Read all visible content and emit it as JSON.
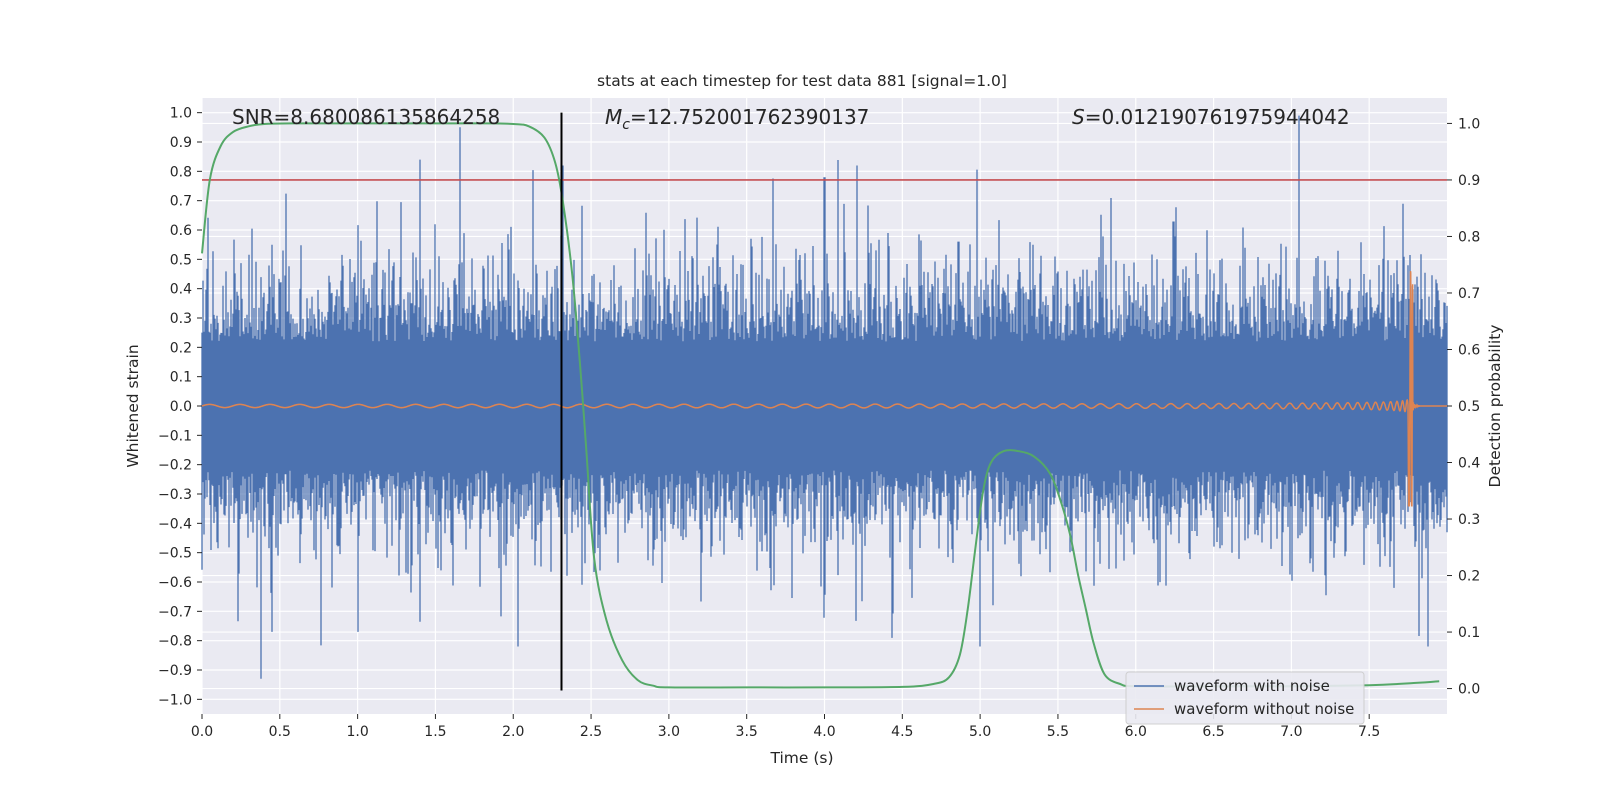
{
  "chart_data": {
    "type": "line",
    "title": "stats at each timestep for test data 881 [signal=1.0]",
    "xlabel": "Time (s)",
    "ylabel_left": "Whitened strain",
    "ylabel_right": "Detection probability",
    "xlim": [
      0.0,
      8.0
    ],
    "ylim_left": [
      -1.05,
      1.05
    ],
    "ylim_right": [
      -0.045,
      1.045
    ],
    "x_ticks": [
      "0.0",
      "0.5",
      "1.0",
      "1.5",
      "2.0",
      "2.5",
      "3.0",
      "3.5",
      "4.0",
      "4.5",
      "5.0",
      "5.5",
      "6.0",
      "6.5",
      "7.0",
      "7.5"
    ],
    "y_ticks_left": [
      "1.0",
      "0.9",
      "0.8",
      "0.7",
      "0.6",
      "0.5",
      "0.4",
      "0.3",
      "0.2",
      "0.1",
      "0.0",
      "−0.1",
      "−0.2",
      "−0.3",
      "−0.4",
      "−0.5",
      "−0.6",
      "−0.7",
      "−0.8",
      "−0.9",
      "−1.0"
    ],
    "y_ticks_right": [
      "1.0",
      "0.9",
      "0.8",
      "0.7",
      "0.6",
      "0.5",
      "0.4",
      "0.3",
      "0.2",
      "0.1",
      "0.0"
    ],
    "grid": true,
    "legend_position": "lower-right",
    "annotations": {
      "snr": "SNR=8.680086135864258",
      "mc_symbol": "M",
      "mc_sub": "c",
      "mc_value": "=12.752001762390137",
      "s_symbol": "S",
      "s_value": "=0.012190761975944042"
    },
    "threshold_right_axis": 0.9,
    "vertical_marker_x": 2.31,
    "series": [
      {
        "name": "waveform with noise",
        "color": "#4c72b0",
        "axis": "left",
        "description_values": "whitened noisy strain, peaks near +/-0.6, max 0.99 at t=7.05, min -0.93 at t=0.38",
        "peaks": [
          {
            "x": 0.38,
            "y": -0.93
          },
          {
            "x": 0.45,
            "y": -0.77
          },
          {
            "x": 1.0,
            "y": -0.77
          },
          {
            "x": 1.4,
            "y": 0.84
          },
          {
            "x": 1.66,
            "y": 0.95
          },
          {
            "x": 2.03,
            "y": -0.82
          },
          {
            "x": 2.32,
            "y": 0.82
          },
          {
            "x": 4.0,
            "y": 0.78
          },
          {
            "x": 5.0,
            "y": -0.82
          },
          {
            "x": 7.05,
            "y": 0.99
          },
          {
            "x": 7.88,
            "y": -0.82
          }
        ]
      },
      {
        "name": "waveform without noise",
        "color": "#dd8452",
        "axis": "left",
        "chirp_end": 7.78,
        "amplitude_peak": 0.47,
        "amplitude_trough": -0.34
      },
      {
        "name": "detection probability",
        "color": "#55a868",
        "axis": "right",
        "x": [
          0.0,
          0.05,
          0.12,
          0.2,
          0.3,
          0.4,
          0.6,
          1.0,
          1.5,
          1.8,
          2.0,
          2.1,
          2.2,
          2.27,
          2.32,
          2.38,
          2.43,
          2.47,
          2.52,
          2.6,
          2.7,
          2.8,
          2.9,
          3.0,
          3.5,
          4.0,
          4.5,
          4.7,
          4.8,
          4.87,
          4.92,
          4.97,
          5.02,
          5.07,
          5.15,
          5.25,
          5.35,
          5.45,
          5.52,
          5.58,
          5.63,
          5.68,
          5.73,
          5.8,
          5.9,
          6.0,
          6.5,
          7.0,
          7.5,
          7.8,
          7.95
        ],
        "y": [
          0.77,
          0.9,
          0.96,
          0.985,
          0.995,
          0.999,
          1.0,
          1.0,
          1.0,
          1.0,
          0.999,
          0.995,
          0.975,
          0.93,
          0.86,
          0.73,
          0.57,
          0.42,
          0.23,
          0.12,
          0.05,
          0.015,
          0.005,
          0.002,
          0.002,
          0.002,
          0.003,
          0.008,
          0.02,
          0.06,
          0.14,
          0.25,
          0.35,
          0.4,
          0.42,
          0.42,
          0.41,
          0.38,
          0.33,
          0.27,
          0.2,
          0.14,
          0.08,
          0.025,
          0.008,
          0.004,
          0.004,
          0.004,
          0.006,
          0.01,
          0.013
        ]
      }
    ],
    "legend": [
      "waveform with noise",
      "waveform without noise"
    ]
  }
}
